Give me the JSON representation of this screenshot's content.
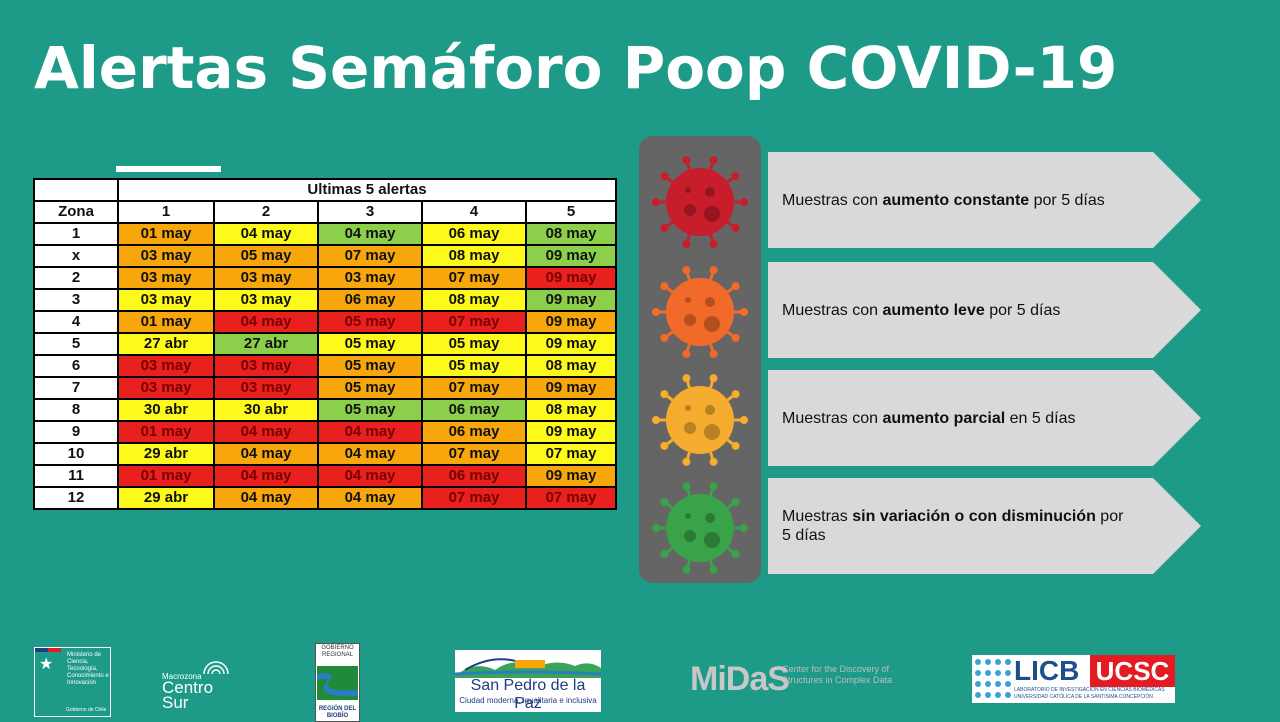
{
  "title": "Alertas Semáforo Poop COVID-19",
  "table": {
    "group_header": "Ultimas 5 alertas",
    "zone_header": "Zona",
    "col_headers": [
      "1",
      "2",
      "3",
      "4",
      "5"
    ],
    "rows": [
      {
        "zone": "1",
        "cells": [
          {
            "t": "01 may",
            "c": "o"
          },
          {
            "t": "04 may",
            "c": "y"
          },
          {
            "t": "04 may",
            "c": "g"
          },
          {
            "t": "06 may",
            "c": "y"
          },
          {
            "t": "08 may",
            "c": "g"
          }
        ]
      },
      {
        "zone": "x",
        "cells": [
          {
            "t": "03 may",
            "c": "o"
          },
          {
            "t": "05 may",
            "c": "o"
          },
          {
            "t": "07 may",
            "c": "o"
          },
          {
            "t": "08 may",
            "c": "y"
          },
          {
            "t": "09 may",
            "c": "g"
          }
        ]
      },
      {
        "zone": "2",
        "cells": [
          {
            "t": "03 may",
            "c": "o"
          },
          {
            "t": "03 may",
            "c": "o"
          },
          {
            "t": "03 may",
            "c": "o"
          },
          {
            "t": "07 may",
            "c": "o"
          },
          {
            "t": "09 may",
            "c": "r"
          }
        ]
      },
      {
        "zone": "3",
        "cells": [
          {
            "t": "03 may",
            "c": "y"
          },
          {
            "t": "03 may",
            "c": "y"
          },
          {
            "t": "06 may",
            "c": "o"
          },
          {
            "t": "08 may",
            "c": "y"
          },
          {
            "t": "09 may",
            "c": "g"
          }
        ]
      },
      {
        "zone": "4",
        "cells": [
          {
            "t": "01 may",
            "c": "o"
          },
          {
            "t": "04 may",
            "c": "r"
          },
          {
            "t": "05 may",
            "c": "r"
          },
          {
            "t": "07 may",
            "c": "r"
          },
          {
            "t": "09 may",
            "c": "o"
          }
        ]
      },
      {
        "zone": "5",
        "cells": [
          {
            "t": "27 abr",
            "c": "y"
          },
          {
            "t": "27 abr",
            "c": "g"
          },
          {
            "t": "05 may",
            "c": "y"
          },
          {
            "t": "05 may",
            "c": "y"
          },
          {
            "t": "09 may",
            "c": "y"
          }
        ]
      },
      {
        "zone": "6",
        "cells": [
          {
            "t": "03 may",
            "c": "r"
          },
          {
            "t": "03 may",
            "c": "r"
          },
          {
            "t": "05 may",
            "c": "o"
          },
          {
            "t": "05 may",
            "c": "y"
          },
          {
            "t": "08 may",
            "c": "y"
          }
        ]
      },
      {
        "zone": "7",
        "cells": [
          {
            "t": "03 may",
            "c": "r"
          },
          {
            "t": "03 may",
            "c": "r"
          },
          {
            "t": "05 may",
            "c": "o"
          },
          {
            "t": "07 may",
            "c": "o"
          },
          {
            "t": "09 may",
            "c": "o"
          }
        ]
      },
      {
        "zone": "8",
        "cells": [
          {
            "t": "30 abr",
            "c": "y"
          },
          {
            "t": "30 abr",
            "c": "y"
          },
          {
            "t": "05 may",
            "c": "g"
          },
          {
            "t": "06 may",
            "c": "g"
          },
          {
            "t": "08 may",
            "c": "y"
          }
        ]
      },
      {
        "zone": "9",
        "cells": [
          {
            "t": "01 may",
            "c": "r"
          },
          {
            "t": "04 may",
            "c": "r"
          },
          {
            "t": "04 may",
            "c": "r"
          },
          {
            "t": "06 may",
            "c": "o"
          },
          {
            "t": "09 may",
            "c": "y"
          }
        ]
      },
      {
        "zone": "10",
        "cells": [
          {
            "t": "29 abr",
            "c": "y"
          },
          {
            "t": "04 may",
            "c": "o"
          },
          {
            "t": "04 may",
            "c": "o"
          },
          {
            "t": "07 may",
            "c": "o"
          },
          {
            "t": "07 may",
            "c": "y"
          }
        ]
      },
      {
        "zone": "11",
        "cells": [
          {
            "t": "01 may",
            "c": "r"
          },
          {
            "t": "04 may",
            "c": "r"
          },
          {
            "t": "04 may",
            "c": "r"
          },
          {
            "t": "06 may",
            "c": "r"
          },
          {
            "t": "09 may",
            "c": "o"
          }
        ]
      },
      {
        "zone": "12",
        "cells": [
          {
            "t": "29 abr",
            "c": "y"
          },
          {
            "t": "04 may",
            "c": "o"
          },
          {
            "t": "04 may",
            "c": "o"
          },
          {
            "t": "07 may",
            "c": "r"
          },
          {
            "t": "07 may",
            "c": "r"
          }
        ]
      }
    ]
  },
  "colors": {
    "red": "#e8201e",
    "orange": "#f7a70c",
    "yellow": "#fdf91b",
    "green": "#8ccf4a",
    "background": "#1e9a89"
  },
  "legend": [
    {
      "icon": "virus-red-icon",
      "color": "#c81d2b",
      "pre": "Muestras con ",
      "bold": "aumento constante",
      "post": " por 5 días"
    },
    {
      "icon": "virus-orange-icon",
      "color": "#f26a2a",
      "pre": "Muestras con ",
      "bold": "aumento leve",
      "post": " por 5 días"
    },
    {
      "icon": "virus-yellow-icon",
      "color": "#f6ac2e",
      "pre": "Muestras con ",
      "bold": "aumento parcial",
      "post": " en 5 días"
    },
    {
      "icon": "virus-green-icon",
      "color": "#3aa349",
      "pre": "Muestras ",
      "bold": "sin variación o con disminución",
      "post": " por 5 días"
    }
  ],
  "logos": {
    "ministerio": "Ministerio de Ciencia, Tecnología, Conocimiento e Innovación",
    "ministerio_sub": "Gobierno de Chile",
    "macrozona": "Macrozona",
    "centro_sur": "Centro Sur",
    "gobierno_regional": "GOBIERNO REGIONAL",
    "region": "REGIÓN DEL BIOBÍO",
    "san_pedro": "San Pedro de la Paz",
    "san_pedro_sub": "Ciudad moderna, igualitaria e inclusiva",
    "midas": "MiDaS",
    "midas_sub": "Center for the Discovery of Structures in Complex Data",
    "licb": "LICB",
    "ucsc": "UCSC",
    "licb_sub": "LABORATORIO DE INVESTIGACIÓN EN CIENCIAS BIOMÉDICAS UNIVERSIDAD CATÓLICA DE LA SANTÍSIMA CONCEPCIÓN"
  }
}
